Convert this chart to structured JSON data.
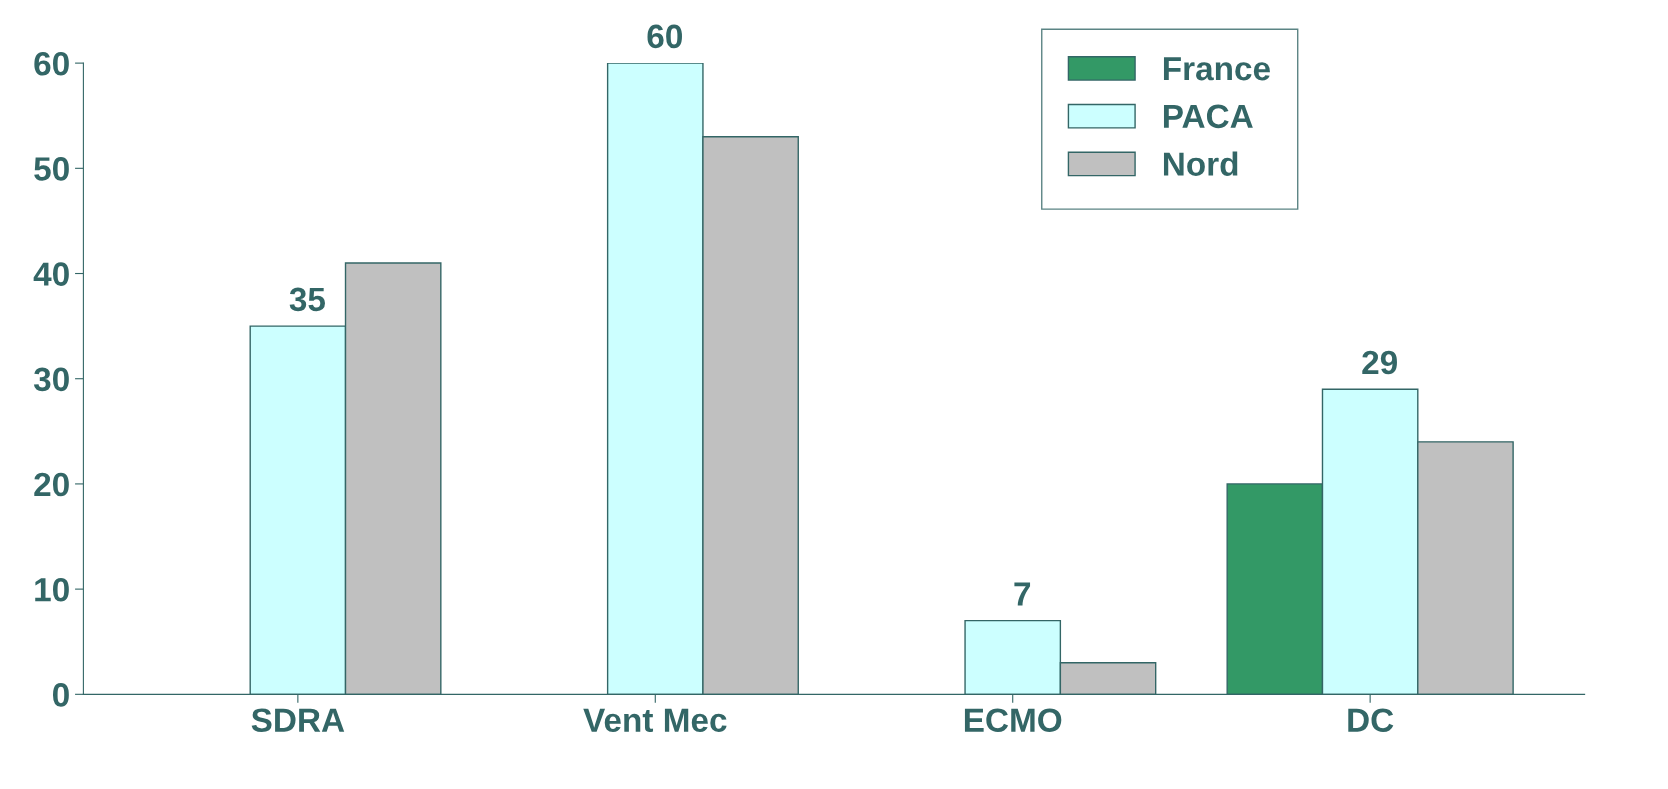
{
  "chart_data": {
    "type": "bar",
    "categories": [
      "SDRA",
      "Vent Mec",
      "ECMO",
      "DC"
    ],
    "series": [
      {
        "name": "France",
        "color": "#339966",
        "values": [
          null,
          null,
          null,
          20
        ]
      },
      {
        "name": "PACA",
        "color": "#ccffff",
        "values": [
          35,
          60,
          7,
          29
        ],
        "value_labels": [
          "35",
          "60",
          "7",
          "29"
        ]
      },
      {
        "name": "Nord",
        "color": "#c0c0c0",
        "values": [
          41,
          53,
          3,
          24
        ]
      }
    ],
    "ylim": [
      0,
      60
    ],
    "yticks": [
      0,
      10,
      20,
      30,
      40,
      50,
      60
    ],
    "grid": false,
    "legend": "top right"
  }
}
